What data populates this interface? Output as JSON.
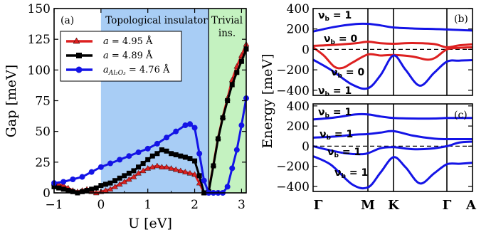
{
  "chart_data": [
    {
      "type": "line",
      "panel_label": "(a)",
      "xlabel": "U [eV]",
      "ylabel": "Gap [meV]",
      "xlim": [
        -1,
        3.1
      ],
      "ylim": [
        0,
        150
      ],
      "x_ticks": [
        "−1",
        "0",
        "1",
        "2",
        "3"
      ],
      "y_ticks": [
        "0",
        "25",
        "50",
        "75",
        "100",
        "125",
        "150"
      ],
      "regions": [
        {
          "label": "Topological insulator",
          "x_range": [
            0,
            2.3
          ],
          "color": "#a8cdf5"
        },
        {
          "label": "Trivial ins.",
          "x_range": [
            2.3,
            3.1
          ],
          "color": "#c4f2c0"
        }
      ],
      "legend": {
        "placement": "top-left"
      },
      "series": [
        {
          "name": "a = 4.95 Å",
          "color": "#dd2020",
          "marker": "triangle",
          "x": [
            -1.0,
            -0.9,
            -0.8,
            -0.7,
            -0.6,
            -0.5,
            -0.4,
            -0.3,
            -0.2,
            -0.1,
            0.0,
            0.1,
            0.2,
            0.3,
            0.4,
            0.5,
            0.6,
            0.7,
            0.8,
            0.9,
            1.0,
            1.1,
            1.2,
            1.3,
            1.4,
            1.5,
            1.6,
            1.7,
            1.8,
            1.9,
            2.0,
            2.1,
            2.2,
            2.3,
            2.4,
            2.5,
            2.6,
            2.7,
            2.8,
            2.9,
            3.0,
            3.1
          ],
          "y": [
            8,
            7,
            6,
            4,
            2,
            1,
            2,
            3,
            1,
            0,
            1,
            2,
            3,
            5,
            7,
            9,
            11,
            13,
            16,
            18,
            20,
            21,
            22,
            21,
            21,
            20,
            19,
            18,
            17,
            16,
            15,
            8,
            0,
            2,
            23,
            45,
            62,
            77,
            92,
            103,
            112,
            121
          ]
        },
        {
          "name": "a = 4.89 Å",
          "color": "#000000",
          "marker": "square",
          "x": [
            -1.0,
            -0.9,
            -0.8,
            -0.7,
            -0.6,
            -0.5,
            -0.4,
            -0.3,
            -0.2,
            -0.1,
            0.0,
            0.1,
            0.2,
            0.3,
            0.4,
            0.5,
            0.6,
            0.7,
            0.8,
            0.9,
            1.0,
            1.1,
            1.2,
            1.3,
            1.4,
            1.5,
            1.6,
            1.7,
            1.8,
            1.9,
            2.0,
            2.1,
            2.2,
            2.3,
            2.4,
            2.5,
            2.6,
            2.7,
            2.8,
            2.9,
            3.0,
            3.1
          ],
          "y": [
            5,
            4,
            3,
            2,
            1,
            0,
            1,
            2,
            3,
            4,
            6,
            7,
            8,
            10,
            12,
            14,
            16,
            18,
            21,
            24,
            27,
            30,
            32,
            35,
            34,
            32,
            31,
            30,
            29,
            28,
            26,
            14,
            0,
            1,
            22,
            44,
            61,
            75,
            88,
            98,
            107,
            117
          ]
        },
        {
          "name": "a_{Al₂O₃} = 4.76 Å",
          "color": "#1414e6",
          "marker": "circle",
          "x": [
            -1.0,
            -0.8,
            -0.6,
            -0.4,
            -0.2,
            0.0,
            0.2,
            0.4,
            0.6,
            0.8,
            1.0,
            1.2,
            1.4,
            1.6,
            1.8,
            1.9,
            2.0,
            2.1,
            2.2,
            2.3,
            2.4,
            2.5,
            2.6,
            2.7,
            2.8,
            2.9,
            3.0,
            3.1
          ],
          "y": [
            8,
            9,
            11,
            13,
            17,
            21,
            24,
            27,
            30,
            33,
            36,
            40,
            45,
            50,
            55,
            56,
            53,
            32,
            10,
            0,
            0,
            0,
            0,
            5,
            20,
            35,
            55,
            77
          ]
        }
      ]
    },
    {
      "type": "line",
      "panel_label": "(b)",
      "ylabel": "Energy [meV]",
      "ylim": [
        -450,
        400
      ],
      "y_ticks": [
        "400",
        "200",
        "0",
        "−200",
        "−400"
      ],
      "band_labels": [
        "νb = 1",
        "νb = 0",
        "νb = 0",
        "νb = 1"
      ],
      "k_path": [
        "Γ",
        "M",
        "K",
        "Γ",
        "A"
      ]
    },
    {
      "type": "line",
      "panel_label": "(c)",
      "ylim": [
        -450,
        420
      ],
      "y_ticks": [
        "400",
        "200",
        "0",
        "−200",
        "−400"
      ],
      "band_labels": [
        "νb = 1",
        "νb = 1",
        "νb = 1",
        "νb = 1"
      ],
      "k_path": [
        "Γ",
        "M",
        "K",
        "Γ",
        "A"
      ]
    }
  ],
  "shared": {
    "ylabel_right": "Energy [meV]"
  }
}
